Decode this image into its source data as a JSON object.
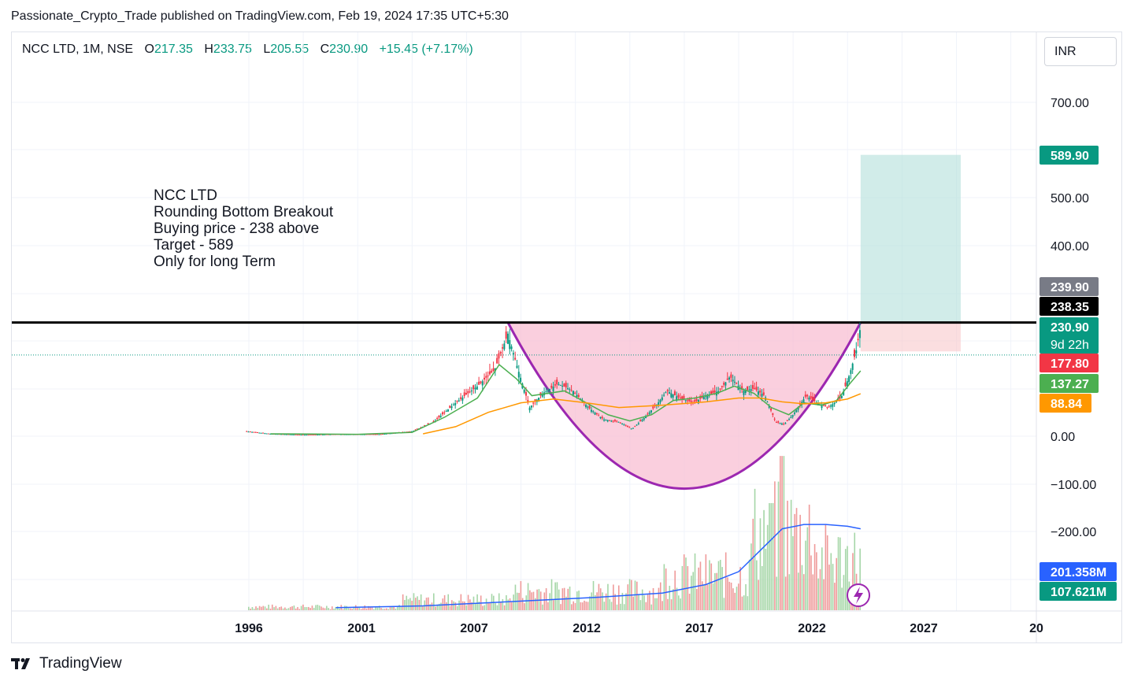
{
  "header": {
    "published_text": "Passionate_Crypto_Trade published on TradingView.com, Feb 19, 2024 17:35 UTC+5:30"
  },
  "legend": {
    "symbol": "NCC LTD, 1M, NSE",
    "open_label": "O",
    "open": "217.35",
    "high_label": "H",
    "high": "233.75",
    "low_label": "L",
    "low": "205.55",
    "close_label": "C",
    "close": "230.90",
    "change": "+15.45 (+7.17%)"
  },
  "currency": "INR",
  "note_lines": [
    "NCC LTD",
    "Rounding Bottom Breakout",
    "Buying price - 238 above",
    "Target - 589",
    "Only for long Term"
  ],
  "footer": {
    "brand": "TradingView"
  },
  "colors": {
    "up": "#089981",
    "down": "#f23645",
    "ma_fast": "#4caf50",
    "ma_slow": "#ff9800",
    "volume_ma": "#2962ff",
    "pattern_stroke": "#9c27b0",
    "pattern_fill": "#f8bbd0",
    "target_zone": "#b2dfdb",
    "stop_zone": "#f8c8cc",
    "breakout_line": "#000000",
    "lightning": "#9c27b0"
  },
  "chart_data": {
    "type": "candlestick",
    "timeframe": "1M",
    "y_axis_ticks": [
      "700.00",
      "500.00",
      "400.00",
      "0.00",
      "−100.00",
      "−200.00"
    ],
    "x_axis_ticks": [
      "1996",
      "2001",
      "2007",
      "2012",
      "2017",
      "2022",
      "2027",
      "20"
    ],
    "price_tags": [
      {
        "label": "589.90",
        "value": 589.9,
        "color": "#089981"
      },
      {
        "label": "239.90",
        "value": 239.9,
        "color": "#787b86"
      },
      {
        "label": "238.35",
        "value": 238.35,
        "color": "#000000"
      },
      {
        "label": "230.90",
        "value": 230.9,
        "color": "#089981",
        "sub": "9d 22h"
      },
      {
        "label": "177.80",
        "value": 177.8,
        "color": "#f23645"
      },
      {
        "label": "137.27",
        "value": 137.27,
        "color": "#4caf50"
      },
      {
        "label": "88.84",
        "value": 88.84,
        "color": "#ff9800"
      }
    ],
    "volume_tags": [
      {
        "label": "201.358M",
        "color": "#2962ff"
      },
      {
        "label": "107.621M",
        "color": "#089981"
      }
    ],
    "price_path": [
      [
        1995.9,
        10
      ],
      [
        1997.0,
        5
      ],
      [
        1998.5,
        3
      ],
      [
        2000.0,
        4
      ],
      [
        2002.0,
        4
      ],
      [
        2003.5,
        10
      ],
      [
        2004.5,
        30
      ],
      [
        2005.5,
        70
      ],
      [
        2006.5,
        105
      ],
      [
        2007.3,
        140
      ],
      [
        2007.9,
        215
      ],
      [
        2008.3,
        150
      ],
      [
        2008.9,
        60
      ],
      [
        2009.5,
        90
      ],
      [
        2010.2,
        110
      ],
      [
        2010.9,
        95
      ],
      [
        2011.6,
        60
      ],
      [
        2012.3,
        35
      ],
      [
        2013.0,
        30
      ],
      [
        2013.6,
        15
      ],
      [
        2014.2,
        40
      ],
      [
        2014.8,
        70
      ],
      [
        2015.2,
        95
      ],
      [
        2015.8,
        80
      ],
      [
        2016.4,
        70
      ],
      [
        2017.0,
        85
      ],
      [
        2017.6,
        95
      ],
      [
        2018.1,
        125
      ],
      [
        2018.7,
        95
      ],
      [
        2019.2,
        100
      ],
      [
        2019.7,
        85
      ],
      [
        2020.2,
        30
      ],
      [
        2020.6,
        25
      ],
      [
        2021.0,
        45
      ],
      [
        2021.6,
        85
      ],
      [
        2022.1,
        70
      ],
      [
        2022.6,
        60
      ],
      [
        2023.2,
        80
      ],
      [
        2023.6,
        130
      ],
      [
        2023.9,
        180
      ],
      [
        2024.1,
        231
      ]
    ],
    "ma_fast_path": [
      [
        1997.0,
        5
      ],
      [
        2001.0,
        4
      ],
      [
        2003.5,
        8
      ],
      [
        2005.0,
        40
      ],
      [
        2006.5,
        80
      ],
      [
        2007.5,
        150
      ],
      [
        2008.3,
        120
      ],
      [
        2009.0,
        85
      ],
      [
        2010.5,
        95
      ],
      [
        2011.5,
        70
      ],
      [
        2012.5,
        45
      ],
      [
        2013.5,
        32
      ],
      [
        2014.5,
        45
      ],
      [
        2015.5,
        75
      ],
      [
        2016.5,
        80
      ],
      [
        2017.5,
        90
      ],
      [
        2018.3,
        105
      ],
      [
        2019.2,
        90
      ],
      [
        2020.0,
        60
      ],
      [
        2020.8,
        45
      ],
      [
        2021.5,
        70
      ],
      [
        2022.3,
        65
      ],
      [
        2023.0,
        75
      ],
      [
        2023.6,
        110
      ],
      [
        2024.1,
        137
      ]
    ],
    "ma_slow_path": [
      [
        2004.0,
        5
      ],
      [
        2005.5,
        20
      ],
      [
        2007.0,
        50
      ],
      [
        2008.5,
        70
      ],
      [
        2010.0,
        78
      ],
      [
        2011.5,
        70
      ],
      [
        2013.0,
        60
      ],
      [
        2015.0,
        65
      ],
      [
        2017.0,
        72
      ],
      [
        2018.5,
        80
      ],
      [
        2019.5,
        80
      ],
      [
        2020.5,
        72
      ],
      [
        2021.5,
        68
      ],
      [
        2022.5,
        70
      ],
      [
        2023.5,
        78
      ],
      [
        2024.1,
        89
      ]
    ],
    "rounding_bottom": {
      "start": [
        2007.9,
        238.35
      ],
      "bottom": [
        2016.0,
        -110
      ],
      "end": [
        2024.1,
        238.35
      ]
    },
    "target_zone": {
      "from_x": 2024.1,
      "to_x": 2028.7,
      "low": 238.35,
      "high": 589.9
    },
    "stop_zone": {
      "from_x": 2024.1,
      "to_x": 2028.7,
      "low": 177.8,
      "high": 238.35
    },
    "volume_ma_path": [
      [
        2000.0,
        3
      ],
      [
        2004.0,
        5
      ],
      [
        2008.0,
        10
      ],
      [
        2012.0,
        15
      ],
      [
        2015.0,
        20
      ],
      [
        2017.0,
        30
      ],
      [
        2018.5,
        45
      ],
      [
        2019.5,
        70
      ],
      [
        2020.5,
        95
      ],
      [
        2021.5,
        100
      ],
      [
        2022.5,
        100
      ],
      [
        2023.5,
        98
      ],
      [
        2024.1,
        95
      ]
    ]
  }
}
